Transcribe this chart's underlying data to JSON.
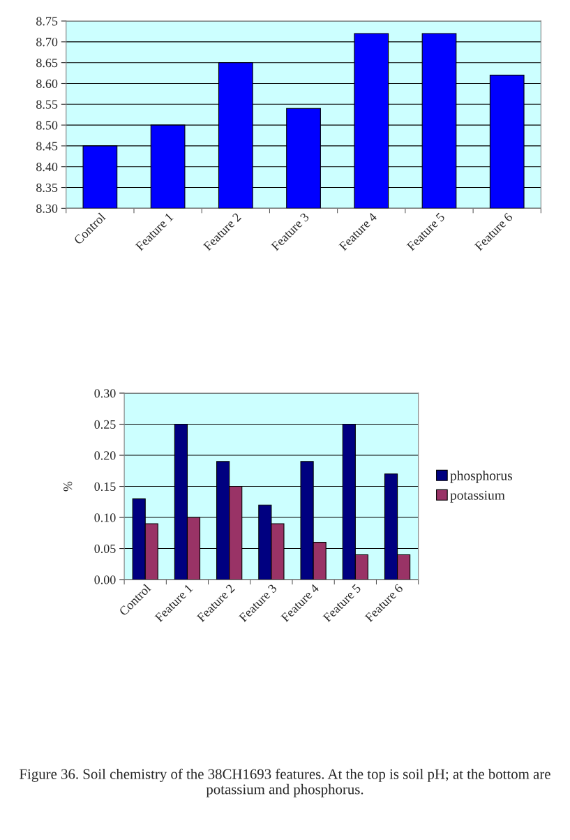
{
  "chart_data": [
    {
      "type": "bar",
      "categories": [
        "Control",
        "Feature 1",
        "Feature 2",
        "Feature 3",
        "Feature 4",
        "Feature 5",
        "Feature 6"
      ],
      "values": [
        8.45,
        8.5,
        8.65,
        8.54,
        8.72,
        8.72,
        8.62
      ],
      "color": "#0000ff",
      "ylim": [
        8.3,
        8.75
      ],
      "yticks": [
        {
          "value": 8.3,
          "label": "8.30"
        },
        8.35,
        {
          "value": 8.4,
          "label": "8.40"
        },
        8.45,
        {
          "value": 8.5,
          "label": "8.50"
        },
        8.55,
        {
          "value": 8.6,
          "label": "8.60"
        },
        8.65,
        {
          "value": 8.7,
          "label": "8.70"
        },
        8.75
      ],
      "grid": "y"
    },
    {
      "type": "bar",
      "categories": [
        "Control",
        "Feature 1",
        "Feature 2",
        "Feature 3",
        "Feature 4",
        "Feature 5",
        "Feature 6"
      ],
      "ylabel": "%",
      "series": [
        {
          "name": "phosphorus",
          "color": "#000080",
          "values": [
            0.13,
            0.25,
            0.19,
            0.12,
            0.19,
            0.25,
            0.17
          ]
        },
        {
          "name": "potassium",
          "color": "#993366",
          "values": [
            0.09,
            0.1,
            0.15,
            0.09,
            0.06,
            0.04,
            0.04
          ]
        }
      ],
      "ylim": [
        0,
        0.3
      ],
      "yticks": [
        {
          "value": 0,
          "label": "0.00"
        },
        0.05,
        {
          "value": 0.1,
          "label": "0.10"
        },
        0.15,
        {
          "value": 0.2,
          "label": "0.20"
        },
        0.25,
        {
          "value": 0.3,
          "label": "0.30"
        }
      ],
      "grid": "y",
      "legend": "right",
      "annotations": [
        "Figure 36. Soil chemistry of the 38CH1693 features. At the top is soil pH; at the bottom are potassium and phosphorus."
      ]
    }
  ]
}
